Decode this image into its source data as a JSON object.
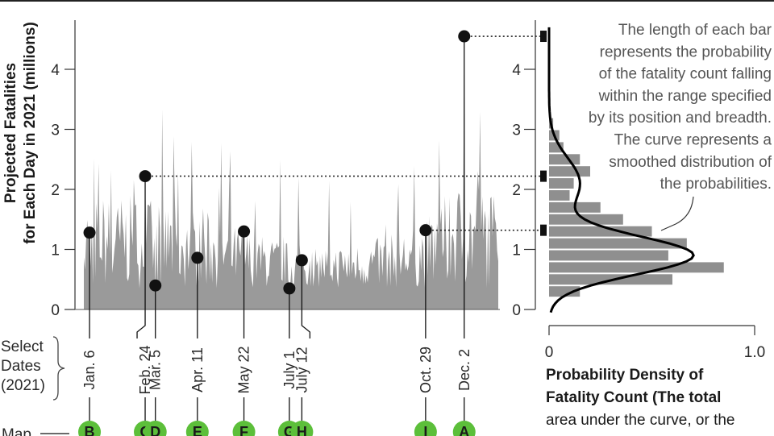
{
  "chart_data": [
    {
      "type": "area",
      "ylabel_lines": [
        "Projected Fatalities",
        "for Each Day in 2021 (millions)"
      ],
      "yticks": [
        0,
        1,
        2,
        3,
        4
      ],
      "ylim": [
        0,
        4.8
      ],
      "highlight_color": "#5cbf3a",
      "area_color": "#9a9a9a",
      "selected_dates": [
        {
          "label": "Jan. 6",
          "map": "B",
          "value": 1.28
        },
        {
          "label": "Feb. 24",
          "map": "C",
          "value": 2.22
        },
        {
          "label": "Mar. 5",
          "map": "D",
          "value": 0.4
        },
        {
          "label": "Apr. 11",
          "map": "E",
          "value": 0.86
        },
        {
          "label": "May 22",
          "map": "F",
          "value": 1.3
        },
        {
          "label": "July 1",
          "map": "G",
          "value": 0.35
        },
        {
          "label": "July 12",
          "map": "H",
          "value": 0.82
        },
        {
          "label": "Oct. 29",
          "map": "I",
          "value": 1.32
        },
        {
          "label": "Dec. 2",
          "map": "A",
          "value": 4.55
        }
      ],
      "select_label_lines": [
        "Select",
        "Dates",
        "(2021)"
      ],
      "map_label": "Map"
    },
    {
      "type": "bar",
      "orientation": "horizontal",
      "bins": [
        {
          "from": 0.2,
          "to": 0.4,
          "density": 0.15
        },
        {
          "from": 0.4,
          "to": 0.6,
          "density": 0.6
        },
        {
          "from": 0.6,
          "to": 0.8,
          "density": 0.85
        },
        {
          "from": 0.8,
          "to": 1.0,
          "density": 0.58
        },
        {
          "from": 1.0,
          "to": 1.2,
          "density": 0.67
        },
        {
          "from": 1.2,
          "to": 1.4,
          "density": 0.5
        },
        {
          "from": 1.4,
          "to": 1.6,
          "density": 0.36
        },
        {
          "from": 1.6,
          "to": 1.8,
          "density": 0.25
        },
        {
          "from": 1.8,
          "to": 2.0,
          "density": 0.1
        },
        {
          "from": 2.0,
          "to": 2.2,
          "density": 0.12
        },
        {
          "from": 2.2,
          "to": 2.4,
          "density": 0.2
        },
        {
          "from": 2.4,
          "to": 2.6,
          "density": 0.15
        },
        {
          "from": 2.6,
          "to": 2.8,
          "density": 0.07
        },
        {
          "from": 2.8,
          "to": 3.0,
          "density": 0.05
        },
        {
          "from": 3.0,
          "to": 3.2,
          "density": 0.02
        }
      ],
      "xticks": [
        0,
        1.0
      ],
      "xtick_labels": [
        "0",
        "1.0"
      ],
      "yticks": [
        0,
        1,
        2,
        3,
        4
      ],
      "ylim": [
        0,
        4.8
      ],
      "curve_peak": 0.7,
      "xlabel_bold_lines": [
        "Probability Density of",
        "Fatality Count"
      ],
      "xlabel_rest": " (The total",
      "xlabel_lines": [
        "area under the curve, or the"
      ],
      "annotation_lines": [
        "The length of each bar",
        "represents the probability",
        "of the fatality count falling",
        "within the range specified",
        "by its position and breadth.",
        "The curve represents a",
        "smoothed distribution of",
        "the probabilities."
      ]
    }
  ]
}
